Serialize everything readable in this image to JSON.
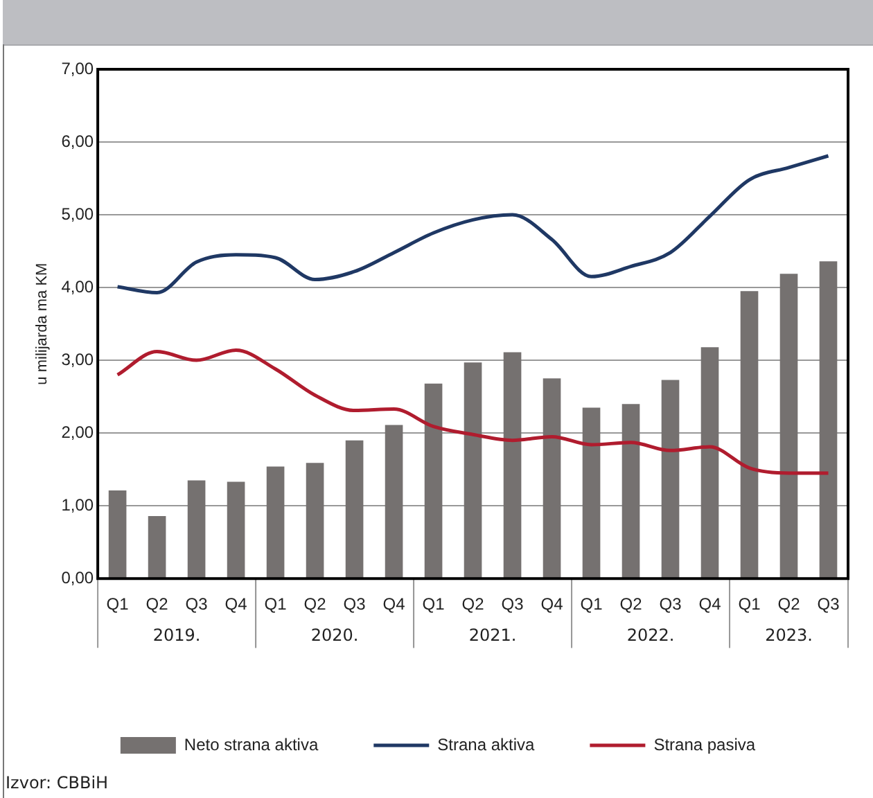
{
  "chart_data": {
    "type": "bar",
    "ylabel": "u milijarda ma KM",
    "categories": [
      "Q1",
      "Q2",
      "Q3",
      "Q4",
      "Q1",
      "Q2",
      "Q3",
      "Q4",
      "Q1",
      "Q2",
      "Q3",
      "Q4",
      "Q1",
      "Q2",
      "Q3",
      "Q4",
      "Q1",
      "Q2",
      "Q3"
    ],
    "series": [
      {
        "name": "Neto strana aktiva",
        "color": "#757170",
        "values": [
          1.21,
          0.86,
          1.35,
          1.33,
          1.54,
          1.59,
          1.9,
          2.11,
          2.68,
          2.97,
          3.11,
          2.75,
          2.35,
          2.4,
          2.73,
          3.18,
          3.95,
          4.19,
          4.36
        ]
      },
      {
        "name": "Strana aktiva",
        "type": "line",
        "color": "#1f3864",
        "values": [
          4.01,
          3.93,
          4.35,
          4.45,
          4.41,
          4.11,
          4.22,
          4.48,
          4.75,
          4.93,
          5.0,
          4.66,
          4.15,
          4.29,
          4.48,
          4.98,
          5.48,
          5.65,
          5.81
        ]
      },
      {
        "name": "Strana pasiva",
        "type": "line",
        "color": "#b01c2e",
        "values": [
          2.8,
          3.12,
          3.0,
          3.14,
          2.88,
          2.52,
          2.31,
          2.33,
          2.09,
          1.98,
          1.9,
          1.95,
          1.84,
          1.87,
          1.76,
          1.81,
          1.52,
          1.45,
          1.45
        ]
      }
    ],
    "ylim": [
      0,
      7
    ],
    "yticks": [
      {
        "value": 0,
        "label": "0,00"
      },
      {
        "value": 1,
        "label": "1,00"
      },
      {
        "value": 2,
        "label": "2,00"
      },
      {
        "value": 3,
        "label": "3,00"
      },
      {
        "value": 4,
        "label": "4,00"
      },
      {
        "value": 5,
        "label": "5,00"
      },
      {
        "value": 6,
        "label": "6,00"
      },
      {
        "value": 7,
        "label": "7,00"
      }
    ],
    "grid": "y",
    "legend": "bottom",
    "marker": "none",
    "line_style": "solid",
    "annotations": [
      "2019.",
      "2020.",
      "2021.",
      "2022.",
      "2023.",
      "Izvor: CBBiH"
    ]
  }
}
